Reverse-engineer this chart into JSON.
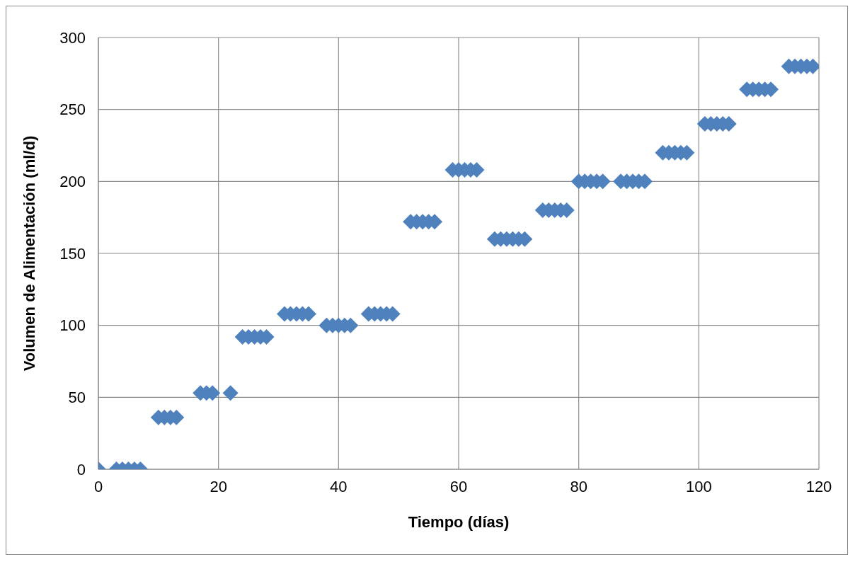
{
  "chart_data": {
    "type": "scatter",
    "xlabel": "Tiempo (días)",
    "ylabel": "Volumen de Alimentación (ml/d)",
    "x": [
      0,
      3,
      4,
      5,
      6,
      7,
      10,
      11,
      12,
      13,
      17,
      18,
      19,
      22,
      24,
      25,
      26,
      27,
      28,
      31,
      32,
      33,
      34,
      35,
      38,
      39,
      40,
      41,
      42,
      45,
      46,
      47,
      48,
      49,
      52,
      53,
      54,
      55,
      56,
      59,
      60,
      61,
      62,
      63,
      66,
      67,
      68,
      69,
      70,
      71,
      74,
      75,
      76,
      77,
      78,
      80,
      81,
      82,
      83,
      84,
      87,
      88,
      89,
      90,
      91,
      94,
      95,
      96,
      97,
      98,
      101,
      102,
      103,
      104,
      105,
      108,
      109,
      110,
      111,
      112,
      115,
      116,
      117,
      118,
      119
    ],
    "series": [
      {
        "color": "#4f81bd",
        "values": [
          0,
          0,
          0,
          0,
          0,
          0,
          36,
          36,
          36,
          36,
          53,
          53,
          53,
          53,
          92,
          92,
          92,
          92,
          92,
          108,
          108,
          108,
          108,
          108,
          100,
          100,
          100,
          100,
          100,
          108,
          108,
          108,
          108,
          108,
          172,
          172,
          172,
          172,
          172,
          208,
          208,
          208,
          208,
          208,
          160,
          160,
          160,
          160,
          160,
          160,
          180,
          180,
          180,
          180,
          180,
          200,
          200,
          200,
          200,
          200,
          200,
          200,
          200,
          200,
          200,
          220,
          220,
          220,
          220,
          220,
          240,
          240,
          240,
          240,
          240,
          264,
          264,
          264,
          264,
          264,
          280,
          280,
          280,
          280,
          280
        ]
      }
    ],
    "marker": "diamond",
    "xlim": [
      0,
      120
    ],
    "xticks": [
      0,
      20,
      40,
      60,
      80,
      100,
      120
    ],
    "ylim": [
      0,
      300
    ],
    "yticks": [
      0,
      50,
      100,
      150,
      200,
      250,
      300
    ],
    "grid": true,
    "legend": false
  }
}
